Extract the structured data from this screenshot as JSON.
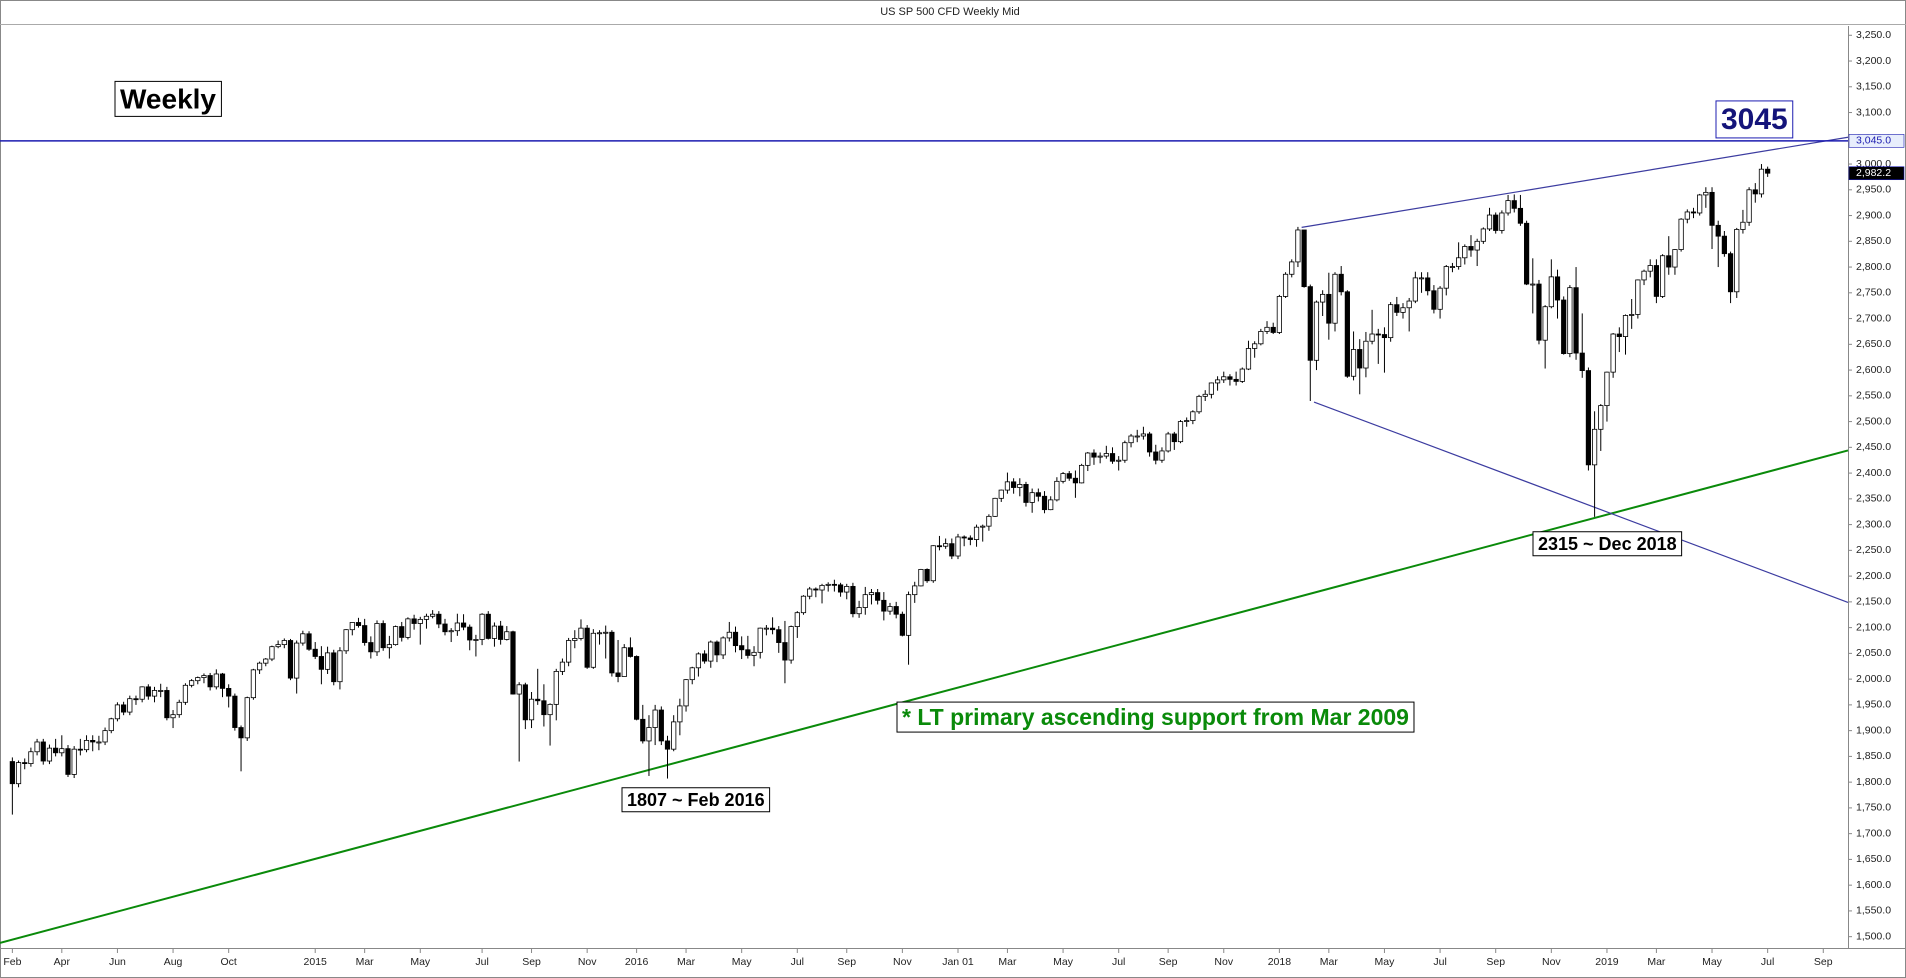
{
  "chart_data": {
    "type": "candlestick",
    "title": "US SP 500 CFD Weekly Mid",
    "up_color": "#ffffff",
    "down_color": "#000000",
    "xlim": [
      -2,
      297
    ],
    "ylim": [
      1478,
      3268
    ],
    "xticks": [
      {
        "value": 0,
        "label": "Feb"
      },
      {
        "value": 8,
        "label": "Apr"
      },
      {
        "value": 17,
        "label": "Jun"
      },
      {
        "value": 26,
        "label": "Aug"
      },
      {
        "value": 35,
        "label": "Oct"
      },
      {
        "value": 49,
        "label": "2015"
      },
      {
        "value": 57,
        "label": "Mar"
      },
      {
        "value": 66,
        "label": "May"
      },
      {
        "value": 76,
        "label": "Jul"
      },
      {
        "value": 84,
        "label": "Sep"
      },
      {
        "value": 93,
        "label": "Nov"
      },
      {
        "value": 101,
        "label": "2016"
      },
      {
        "value": 109,
        "label": "Mar"
      },
      {
        "value": 118,
        "label": "May"
      },
      {
        "value": 127,
        "label": "Jul"
      },
      {
        "value": 135,
        "label": "Sep"
      },
      {
        "value": 144,
        "label": "Nov"
      },
      {
        "value": 153,
        "label": "Jan 01"
      },
      {
        "value": 161,
        "label": "Mar"
      },
      {
        "value": 170,
        "label": "May"
      },
      {
        "value": 179,
        "label": "Jul"
      },
      {
        "value": 187,
        "label": "Sep"
      },
      {
        "value": 196,
        "label": "Nov"
      },
      {
        "value": 205,
        "label": "2018"
      },
      {
        "value": 213,
        "label": "Mar"
      },
      {
        "value": 222,
        "label": "May"
      },
      {
        "value": 231,
        "label": "Jul"
      },
      {
        "value": 240,
        "label": "Sep"
      },
      {
        "value": 249,
        "label": "Nov"
      },
      {
        "value": 258,
        "label": "2019"
      },
      {
        "value": 266,
        "label": "Mar"
      },
      {
        "value": 275,
        "label": "May"
      },
      {
        "value": 284,
        "label": "Jul"
      },
      {
        "value": 293,
        "label": "Sep"
      }
    ],
    "yticks": [
      {
        "value": 1500,
        "label": "1,500.0"
      },
      {
        "value": 1550,
        "label": "1,550.0"
      },
      {
        "value": 1600,
        "label": "1,600.0"
      },
      {
        "value": 1650,
        "label": "1,650.0"
      },
      {
        "value": 1700,
        "label": "1,700.0"
      },
      {
        "value": 1750,
        "label": "1,750.0"
      },
      {
        "value": 1800,
        "label": "1,800.0"
      },
      {
        "value": 1850,
        "label": "1,850.0"
      },
      {
        "value": 1900,
        "label": "1,900.0"
      },
      {
        "value": 1950,
        "label": "1,950.0"
      },
      {
        "value": 2000,
        "label": "2,000.0"
      },
      {
        "value": 2050,
        "label": "2,050.0"
      },
      {
        "value": 2100,
        "label": "2,100.0"
      },
      {
        "value": 2150,
        "label": "2,150.0"
      },
      {
        "value": 2200,
        "label": "2,200.0"
      },
      {
        "value": 2250,
        "label": "2,250.0"
      },
      {
        "value": 2300,
        "label": "2,300.0"
      },
      {
        "value": 2350,
        "label": "2,350.0"
      },
      {
        "value": 2400,
        "label": "2,400.0"
      },
      {
        "value": 2450,
        "label": "2,450.0"
      },
      {
        "value": 2500,
        "label": "2,500.0"
      },
      {
        "value": 2550,
        "label": "2,550.0"
      },
      {
        "value": 2600,
        "label": "2,600.0"
      },
      {
        "value": 2650,
        "label": "2,650.0"
      },
      {
        "value": 2700,
        "label": "2,700.0"
      },
      {
        "value": 2750,
        "label": "2,750.0"
      },
      {
        "value": 2800,
        "label": "2,800.0"
      },
      {
        "value": 2850,
        "label": "2,850.0"
      },
      {
        "value": 2900,
        "label": "2,900.0"
      },
      {
        "value": 2950,
        "label": "2,950.0"
      },
      {
        "value": 3000,
        "label": "3,000.0"
      },
      {
        "value": 3050,
        "label": "3,050.0"
      },
      {
        "value": 3100,
        "label": "3,100.0"
      },
      {
        "value": 3150,
        "label": "3,150.0"
      },
      {
        "value": 3200,
        "label": "3,200.0"
      },
      {
        "value": 3250,
        "label": "3,250.0"
      }
    ],
    "open": [
      1840,
      1797,
      1838,
      1836,
      1859,
      1878,
      1841,
      1866,
      1857,
      1865,
      1815,
      1864,
      1863,
      1881,
      1878,
      1878,
      1900,
      1923,
      1950,
      1936,
      1962,
      1961,
      1985,
      1967,
      1978,
      1978,
      1925,
      1931,
      1955,
      1988,
      1997,
      2003,
      2007,
      1985,
      2010,
      1982,
      1967,
      1906,
      1886,
      1964,
      2018,
      2031,
      2039,
      2063,
      2067,
      2075,
      2002,
      2070,
      2088,
      2058,
      2044,
      2019,
      2051,
      1995,
      2055,
      2096,
      2110,
      2104,
      2071,
      2053,
      2108,
      2061,
      2067,
      2102,
      2081,
      2117,
      2108,
      2116,
      2122,
      2126,
      2107,
      2092,
      2094,
      2109,
      2101,
      2076,
      2077,
      2126,
      2079,
      2103,
      2077,
      2092,
      1971,
      1989,
      1921,
      1961,
      1958,
      1931,
      1951,
      2015,
      2033,
      2075,
      2079,
      2099,
      2023,
      2089,
      2090,
      2091,
      2012,
      2005,
      2061,
      2044,
      1922,
      1880,
      1906,
      1940,
      1880,
      1864,
      1917,
      1948,
      1999,
      2022,
      2049,
      2035,
      2072,
      2047,
      2080,
      2091,
      2065,
      2057,
      2046,
      2052,
      2099,
      2099,
      2096,
      2071,
      2037,
      2102,
      2129,
      2161,
      2175,
      2173,
      2182,
      2184,
      2183,
      2169,
      2180,
      2127,
      2139,
      2164,
      2168,
      2153,
      2132,
      2141,
      2126,
      2085,
      2164,
      2181,
      2213,
      2191,
      2259,
      2258,
      2263,
      2239,
      2276,
      2274,
      2271,
      2295,
      2297,
      2316,
      2351,
      2367,
      2383,
      2372,
      2378,
      2343,
      2362,
      2355,
      2329,
      2348,
      2384,
      2399,
      2390,
      2381,
      2415,
      2439,
      2431,
      2433,
      2438,
      2423,
      2425,
      2459,
      2472,
      2472,
      2476,
      2441,
      2425,
      2443,
      2476,
      2461,
      2500,
      2502,
      2519,
      2549,
      2553,
      2575,
      2581,
      2587,
      2582,
      2578,
      2602,
      2642,
      2651,
      2675,
      2683,
      2673,
      2743,
      2786,
      2810,
      2872,
      2762,
      2619,
      2732,
      2747,
      2691,
      2786,
      2752,
      2588,
      2640,
      2604,
      2656,
      2670,
      2669,
      2663,
      2727,
      2712,
      2721,
      2734,
      2779,
      2779,
      2754,
      2718,
      2759,
      2801,
      2801,
      2818,
      2840,
      2833,
      2850,
      2874,
      2901,
      2871,
      2905,
      2929,
      2914,
      2885,
      2767,
      2767,
      2658,
      2723,
      2781,
      2736,
      2632,
      2760,
      2633,
      2599,
      2416,
      2485,
      2531,
      2596,
      2670,
      2665,
      2706,
      2708,
      2775,
      2792,
      2803,
      2743,
      2822,
      2800,
      2834,
      2893,
      2907,
      2905,
      2940,
      2945,
      2881,
      2860,
      2826,
      2752,
      2873,
      2887,
      2950,
      2942,
      2990
    ],
    "high": [
      1848,
      1842,
      1846,
      1867,
      1884,
      1884,
      1873,
      1884,
      1891,
      1872,
      1870,
      1884,
      1891,
      1891,
      1890,
      1906,
      1925,
      1955,
      1956,
      1968,
      1968,
      1986,
      1990,
      1985,
      1991,
      1985,
      1940,
      1960,
      1992,
      2000,
      2005,
      2011,
      2012,
      2019,
      2012,
      1990,
      1972,
      1910,
      1966,
      2020,
      2034,
      2041,
      2065,
      2075,
      2079,
      2078,
      2075,
      2094,
      2093,
      2072,
      2064,
      2063,
      2057,
      2062,
      2097,
      2110,
      2119,
      2117,
      2083,
      2114,
      2114,
      2084,
      2104,
      2111,
      2120,
      2125,
      2121,
      2127,
      2134,
      2132,
      2117,
      2099,
      2127,
      2126,
      2106,
      2086,
      2128,
      2132,
      2110,
      2113,
      2103,
      2094,
      1994,
      1993,
      1975,
      2020,
      1990,
      1953,
      2020,
      2040,
      2080,
      2095,
      2116,
      2105,
      2097,
      2095,
      2104,
      2095,
      2076,
      2068,
      2081,
      2046,
      1950,
      1930,
      1950,
      1947,
      1890,
      1930,
      1962,
      2000,
      2024,
      2052,
      2056,
      2075,
      2075,
      2083,
      2111,
      2102,
      2083,
      2084,
      2064,
      2100,
      2105,
      2120,
      2103,
      2113,
      2104,
      2132,
      2163,
      2179,
      2178,
      2185,
      2188,
      2193,
      2187,
      2185,
      2187,
      2152,
      2179,
      2175,
      2175,
      2169,
      2148,
      2150,
      2131,
      2170,
      2189,
      2214,
      2215,
      2260,
      2278,
      2273,
      2273,
      2282,
      2279,
      2279,
      2300,
      2300,
      2320,
      2352,
      2368,
      2401,
      2390,
      2390,
      2383,
      2370,
      2370,
      2365,
      2355,
      2392,
      2402,
      2404,
      2405,
      2418,
      2441,
      2446,
      2440,
      2453,
      2450,
      2433,
      2463,
      2476,
      2484,
      2490,
      2480,
      2455,
      2450,
      2480,
      2480,
      2503,
      2508,
      2522,
      2552,
      2561,
      2576,
      2588,
      2597,
      2592,
      2597,
      2605,
      2657,
      2656,
      2680,
      2695,
      2692,
      2746,
      2790,
      2815,
      2878,
      2872,
      2766,
      2735,
      2755,
      2789,
      2790,
      2802,
      2755,
      2675,
      2660,
      2674,
      2717,
      2680,
      2683,
      2732,
      2742,
      2730,
      2740,
      2791,
      2790,
      2790,
      2765,
      2763,
      2804,
      2808,
      2848,
      2844,
      2862,
      2855,
      2877,
      2915,
      2906,
      2910,
      2940,
      2941,
      2940,
      2890,
      2817,
      2775,
      2726,
      2815,
      2795,
      2743,
      2765,
      2800,
      2710,
      2605,
      2520,
      2534,
      2597,
      2672,
      2683,
      2708,
      2738,
      2776,
      2795,
      2815,
      2815,
      2825,
      2860,
      2835,
      2895,
      2912,
      2915,
      2942,
      2955,
      2955,
      2890,
      2870,
      2830,
      2876,
      2911,
      2955,
      2963,
      3000,
      2995
    ],
    "low": [
      1737,
      1790,
      1825,
      1830,
      1852,
      1834,
      1835,
      1850,
      1850,
      1810,
      1808,
      1852,
      1858,
      1860,
      1862,
      1872,
      1895,
      1918,
      1930,
      1930,
      1950,
      1955,
      1960,
      1955,
      1965,
      1920,
      1905,
      1925,
      1950,
      1984,
      1990,
      1992,
      1978,
      1980,
      1965,
      1945,
      1900,
      1821,
      1880,
      1960,
      2010,
      2025,
      2035,
      2060,
      2060,
      1998,
      1972,
      2065,
      2055,
      2039,
      1990,
      2010,
      1988,
      1980,
      2049,
      2085,
      2100,
      2065,
      2040,
      2045,
      2055,
      2040,
      2065,
      2073,
      2077,
      2096,
      2067,
      2098,
      2118,
      2099,
      2085,
      2072,
      2084,
      2095,
      2056,
      2044,
      2066,
      2077,
      2063,
      2067,
      2075,
      1970,
      1840,
      1903,
      1905,
      1950,
      1908,
      1871,
      1920,
      2008,
      2025,
      2060,
      2075,
      2020,
      2020,
      2067,
      2040,
      2005,
      1994,
      2005,
      2042,
      1920,
      1875,
      1812,
      1872,
      1872,
      1807,
      1860,
      1891,
      1937,
      1990,
      2005,
      2030,
      2022,
      2033,
      2039,
      2073,
      2052,
      2039,
      2040,
      2025,
      2040,
      2085,
      2087,
      2051,
      1992,
      2030,
      2080,
      2125,
      2155,
      2159,
      2147,
      2170,
      2170,
      2160,
      2155,
      2120,
      2119,
      2125,
      2145,
      2145,
      2114,
      2125,
      2118,
      2083,
      2028,
      2148,
      2180,
      2187,
      2187,
      2250,
      2253,
      2233,
      2233,
      2258,
      2260,
      2257,
      2267,
      2288,
      2315,
      2344,
      2360,
      2360,
      2355,
      2335,
      2323,
      2345,
      2322,
      2328,
      2345,
      2380,
      2385,
      2352,
      2380,
      2404,
      2416,
      2419,
      2428,
      2418,
      2405,
      2420,
      2450,
      2460,
      2465,
      2432,
      2417,
      2420,
      2440,
      2445,
      2458,
      2490,
      2495,
      2515,
      2540,
      2545,
      2560,
      2575,
      2570,
      2570,
      2575,
      2600,
      2624,
      2648,
      2670,
      2670,
      2670,
      2740,
      2780,
      2800,
      2760,
      2540,
      2600,
      2705,
      2659,
      2675,
      2745,
      2585,
      2580,
      2553,
      2586,
      2650,
      2612,
      2595,
      2655,
      2705,
      2700,
      2675,
      2730,
      2750,
      2745,
      2710,
      2700,
      2745,
      2790,
      2795,
      2805,
      2820,
      2802,
      2845,
      2870,
      2865,
      2865,
      2900,
      2906,
      2880,
      2765,
      2710,
      2650,
      2603,
      2720,
      2700,
      2630,
      2625,
      2620,
      2585,
      2405,
      2315,
      2443,
      2500,
      2585,
      2635,
      2630,
      2680,
      2700,
      2765,
      2780,
      2730,
      2740,
      2785,
      2785,
      2830,
      2885,
      2895,
      2900,
      2915,
      2835,
      2800,
      2820,
      2730,
      2740,
      2865,
      2880,
      2925,
      2935,
      2975
    ],
    "close": [
      1797,
      1838,
      1836,
      1859,
      1878,
      1841,
      1866,
      1857,
      1865,
      1815,
      1864,
      1863,
      1881,
      1878,
      1878,
      1900,
      1923,
      1950,
      1936,
      1962,
      1961,
      1985,
      1967,
      1978,
      1978,
      1925,
      1931,
      1955,
      1988,
      1997,
      2003,
      2007,
      1985,
      2010,
      1982,
      1967,
      1906,
      1886,
      1964,
      2018,
      2031,
      2039,
      2063,
      2067,
      2075,
      2002,
      2070,
      2088,
      2058,
      2044,
      2019,
      2051,
      1995,
      2055,
      2096,
      2110,
      2104,
      2071,
      2053,
      2108,
      2061,
      2067,
      2102,
      2081,
      2117,
      2108,
      2116,
      2122,
      2126,
      2107,
      2092,
      2094,
      2109,
      2101,
      2076,
      2077,
      2126,
      2079,
      2103,
      2077,
      2092,
      1971,
      1989,
      1921,
      1961,
      1958,
      1931,
      1951,
      2015,
      2033,
      2075,
      2079,
      2099,
      2023,
      2089,
      2090,
      2091,
      2012,
      2005,
      2061,
      2044,
      1922,
      1880,
      1906,
      1940,
      1880,
      1864,
      1917,
      1948,
      1999,
      2022,
      2049,
      2035,
      2072,
      2047,
      2080,
      2091,
      2065,
      2057,
      2046,
      2052,
      2099,
      2099,
      2096,
      2071,
      2037,
      2102,
      2129,
      2161,
      2175,
      2173,
      2182,
      2184,
      2183,
      2169,
      2180,
      2127,
      2139,
      2164,
      2168,
      2153,
      2132,
      2141,
      2126,
      2085,
      2164,
      2181,
      2213,
      2191,
      2259,
      2258,
      2263,
      2239,
      2276,
      2274,
      2271,
      2295,
      2297,
      2316,
      2351,
      2367,
      2383,
      2372,
      2378,
      2343,
      2362,
      2355,
      2329,
      2348,
      2384,
      2399,
      2390,
      2381,
      2415,
      2439,
      2431,
      2433,
      2438,
      2423,
      2425,
      2459,
      2472,
      2472,
      2476,
      2441,
      2425,
      2443,
      2476,
      2461,
      2500,
      2502,
      2519,
      2549,
      2553,
      2575,
      2581,
      2587,
      2582,
      2578,
      2602,
      2642,
      2651,
      2675,
      2683,
      2673,
      2743,
      2786,
      2810,
      2872,
      2762,
      2619,
      2732,
      2747,
      2691,
      2786,
      2752,
      2588,
      2640,
      2604,
      2656,
      2670,
      2669,
      2663,
      2727,
      2712,
      2721,
      2734,
      2779,
      2779,
      2754,
      2718,
      2759,
      2801,
      2801,
      2818,
      2840,
      2833,
      2850,
      2874,
      2901,
      2871,
      2905,
      2929,
      2914,
      2885,
      2767,
      2767,
      2658,
      2723,
      2781,
      2736,
      2632,
      2760,
      2633,
      2599,
      2416,
      2485,
      2531,
      2596,
      2670,
      2665,
      2706,
      2708,
      2775,
      2792,
      2803,
      2743,
      2822,
      2800,
      2834,
      2893,
      2907,
      2905,
      2940,
      2945,
      2881,
      2860,
      2826,
      2752,
      2873,
      2887,
      2950,
      2942,
      2990,
      2982.2
    ],
    "hline": {
      "value": 3045,
      "label": "3,045.0",
      "color": "#1c1cb0"
    },
    "last_price": {
      "value": 2982.2,
      "label": "2,982.2"
    },
    "trendlines": [
      {
        "color": "#0a8a0a",
        "x": [
          -2,
          297
        ],
        "y": [
          1488,
          2444
        ]
      },
      {
        "color": "#3c3ca0",
        "x": [
          208.6,
          297
        ],
        "y": [
          2877,
          3052
        ]
      },
      {
        "color": "#3c3ca0",
        "x": [
          210.6,
          297
        ],
        "y": [
          2538,
          2149
        ]
      }
    ],
    "annotations": [
      "Weekly",
      "1807 ~ Feb 2016",
      "2315 ~ Dec 2018",
      "* LT primary ascending support from Mar 2009"
    ]
  }
}
